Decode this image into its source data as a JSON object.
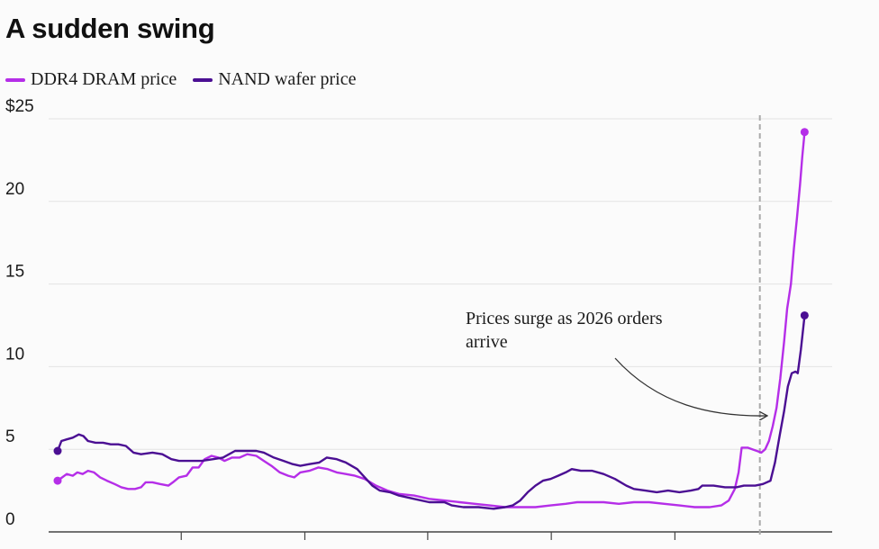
{
  "chart_data": {
    "type": "line",
    "title": "A sudden swing",
    "xlabel": "",
    "ylabel": "",
    "ylim": [
      0,
      25
    ],
    "yticks": [
      {
        "value": 0,
        "label": "0"
      },
      {
        "value": 5,
        "label": "5"
      },
      {
        "value": 10,
        "label": "10"
      },
      {
        "value": 15,
        "label": "15"
      },
      {
        "value": 20,
        "label": "20"
      },
      {
        "value": 25,
        "label": "$25"
      }
    ],
    "xlim": [
      0,
      100
    ],
    "xticks_minor": [
      16.3,
      32.6,
      48.8,
      65.1,
      81.4
    ],
    "grid": true,
    "legend_position": "top-left",
    "annotation": {
      "lines": [
        "Prices surge as 2026 orders",
        "arrive"
      ],
      "marker_x": 92.6
    },
    "series": [
      {
        "name": "DDR4 DRAM price",
        "color": "#b52ee8",
        "points": [
          [
            0,
            3.1
          ],
          [
            0.6,
            3.3
          ],
          [
            1.2,
            3.5
          ],
          [
            2.0,
            3.4
          ],
          [
            2.6,
            3.6
          ],
          [
            3.3,
            3.5
          ],
          [
            4.0,
            3.7
          ],
          [
            4.8,
            3.6
          ],
          [
            5.6,
            3.3
          ],
          [
            6.5,
            3.1
          ],
          [
            7.5,
            2.9
          ],
          [
            8.4,
            2.7
          ],
          [
            9.3,
            2.6
          ],
          [
            10.2,
            2.6
          ],
          [
            11.0,
            2.7
          ],
          [
            11.6,
            3.0
          ],
          [
            12.5,
            3.0
          ],
          [
            13.5,
            2.9
          ],
          [
            14.6,
            2.8
          ],
          [
            15.2,
            3.0
          ],
          [
            16.0,
            3.3
          ],
          [
            17.0,
            3.4
          ],
          [
            17.8,
            3.9
          ],
          [
            18.6,
            3.9
          ],
          [
            19.4,
            4.4
          ],
          [
            20.3,
            4.6
          ],
          [
            21.2,
            4.5
          ],
          [
            22.0,
            4.3
          ],
          [
            23.0,
            4.5
          ],
          [
            24.0,
            4.5
          ],
          [
            25.0,
            4.7
          ],
          [
            26.2,
            4.6
          ],
          [
            27.2,
            4.3
          ],
          [
            28.2,
            4.0
          ],
          [
            29.3,
            3.6
          ],
          [
            30.4,
            3.4
          ],
          [
            31.2,
            3.3
          ],
          [
            32.0,
            3.6
          ],
          [
            33.2,
            3.7
          ],
          [
            34.4,
            3.9
          ],
          [
            35.6,
            3.8
          ],
          [
            36.8,
            3.6
          ],
          [
            38.0,
            3.5
          ],
          [
            39.2,
            3.4
          ],
          [
            40.5,
            3.2
          ],
          [
            42.0,
            2.8
          ],
          [
            43.5,
            2.5
          ],
          [
            45.0,
            2.3
          ],
          [
            47.0,
            2.2
          ],
          [
            49.0,
            2.0
          ],
          [
            51.0,
            1.9
          ],
          [
            53.0,
            1.8
          ],
          [
            55.0,
            1.7
          ],
          [
            57.0,
            1.6
          ],
          [
            59.0,
            1.5
          ],
          [
            61.0,
            1.5
          ],
          [
            63.0,
            1.5
          ],
          [
            65.0,
            1.6
          ],
          [
            67.0,
            1.7
          ],
          [
            68.5,
            1.8
          ],
          [
            70.0,
            1.8
          ],
          [
            72.0,
            1.8
          ],
          [
            74.0,
            1.7
          ],
          [
            76.0,
            1.8
          ],
          [
            78.0,
            1.8
          ],
          [
            80.0,
            1.7
          ],
          [
            82.0,
            1.6
          ],
          [
            84.0,
            1.5
          ],
          [
            86.0,
            1.5
          ],
          [
            87.5,
            1.6
          ],
          [
            88.5,
            1.9
          ],
          [
            89.3,
            2.6
          ],
          [
            89.8,
            3.6
          ],
          [
            90.2,
            5.1
          ],
          [
            91.0,
            5.1
          ],
          [
            91.6,
            5.0
          ],
          [
            92.2,
            4.9
          ],
          [
            92.8,
            4.8
          ],
          [
            93.3,
            5.0
          ],
          [
            93.8,
            5.5
          ],
          [
            94.3,
            6.4
          ],
          [
            94.8,
            7.5
          ],
          [
            95.3,
            9.3
          ],
          [
            95.8,
            11.5
          ],
          [
            96.2,
            13.5
          ],
          [
            96.7,
            15.0
          ],
          [
            97.1,
            17.2
          ],
          [
            97.5,
            19.0
          ],
          [
            97.9,
            21.0
          ],
          [
            98.2,
            22.7
          ],
          [
            98.5,
            24.2
          ]
        ]
      },
      {
        "name": "NAND wafer price",
        "color": "#4b0f93",
        "points": [
          [
            0,
            4.9
          ],
          [
            0.5,
            5.5
          ],
          [
            1.2,
            5.6
          ],
          [
            2.0,
            5.7
          ],
          [
            2.8,
            5.9
          ],
          [
            3.4,
            5.8
          ],
          [
            4.0,
            5.5
          ],
          [
            5.0,
            5.4
          ],
          [
            6.0,
            5.4
          ],
          [
            7.0,
            5.3
          ],
          [
            8.0,
            5.3
          ],
          [
            9.0,
            5.2
          ],
          [
            10.0,
            4.8
          ],
          [
            11.0,
            4.7
          ],
          [
            12.5,
            4.8
          ],
          [
            13.8,
            4.7
          ],
          [
            15.0,
            4.4
          ],
          [
            16.0,
            4.3
          ],
          [
            17.5,
            4.3
          ],
          [
            19.0,
            4.3
          ],
          [
            20.5,
            4.4
          ],
          [
            21.8,
            4.5
          ],
          [
            22.6,
            4.7
          ],
          [
            23.4,
            4.9
          ],
          [
            24.8,
            4.9
          ],
          [
            26.2,
            4.9
          ],
          [
            27.2,
            4.8
          ],
          [
            28.5,
            4.5
          ],
          [
            29.8,
            4.3
          ],
          [
            31.0,
            4.1
          ],
          [
            32.0,
            4.0
          ],
          [
            33.2,
            4.1
          ],
          [
            34.5,
            4.2
          ],
          [
            35.5,
            4.5
          ],
          [
            36.8,
            4.4
          ],
          [
            38.0,
            4.2
          ],
          [
            39.5,
            3.8
          ],
          [
            40.5,
            3.3
          ],
          [
            41.5,
            2.8
          ],
          [
            42.5,
            2.5
          ],
          [
            43.8,
            2.4
          ],
          [
            45.0,
            2.2
          ],
          [
            47.0,
            2.0
          ],
          [
            49.0,
            1.8
          ],
          [
            51.0,
            1.8
          ],
          [
            52.0,
            1.6
          ],
          [
            53.5,
            1.5
          ],
          [
            55.5,
            1.5
          ],
          [
            57.5,
            1.4
          ],
          [
            59.0,
            1.5
          ],
          [
            60.0,
            1.6
          ],
          [
            61.0,
            1.9
          ],
          [
            62.0,
            2.4
          ],
          [
            63.0,
            2.8
          ],
          [
            64.0,
            3.1
          ],
          [
            65.0,
            3.2
          ],
          [
            66.0,
            3.4
          ],
          [
            67.0,
            3.6
          ],
          [
            67.8,
            3.8
          ],
          [
            69.0,
            3.7
          ],
          [
            70.5,
            3.7
          ],
          [
            72.0,
            3.5
          ],
          [
            73.5,
            3.2
          ],
          [
            75.0,
            2.8
          ],
          [
            76.0,
            2.6
          ],
          [
            77.5,
            2.5
          ],
          [
            79.0,
            2.4
          ],
          [
            80.5,
            2.5
          ],
          [
            82.0,
            2.4
          ],
          [
            83.5,
            2.5
          ],
          [
            84.5,
            2.6
          ],
          [
            85.0,
            2.8
          ],
          [
            86.5,
            2.8
          ],
          [
            88.0,
            2.7
          ],
          [
            89.5,
            2.7
          ],
          [
            90.5,
            2.8
          ],
          [
            92.0,
            2.8
          ],
          [
            93.0,
            2.9
          ],
          [
            94.0,
            3.1
          ],
          [
            94.6,
            4.2
          ],
          [
            95.2,
            5.8
          ],
          [
            95.8,
            7.3
          ],
          [
            96.3,
            8.8
          ],
          [
            96.8,
            9.6
          ],
          [
            97.3,
            9.7
          ],
          [
            97.6,
            9.6
          ],
          [
            98.0,
            11.0
          ],
          [
            98.5,
            13.1
          ]
        ]
      }
    ]
  }
}
